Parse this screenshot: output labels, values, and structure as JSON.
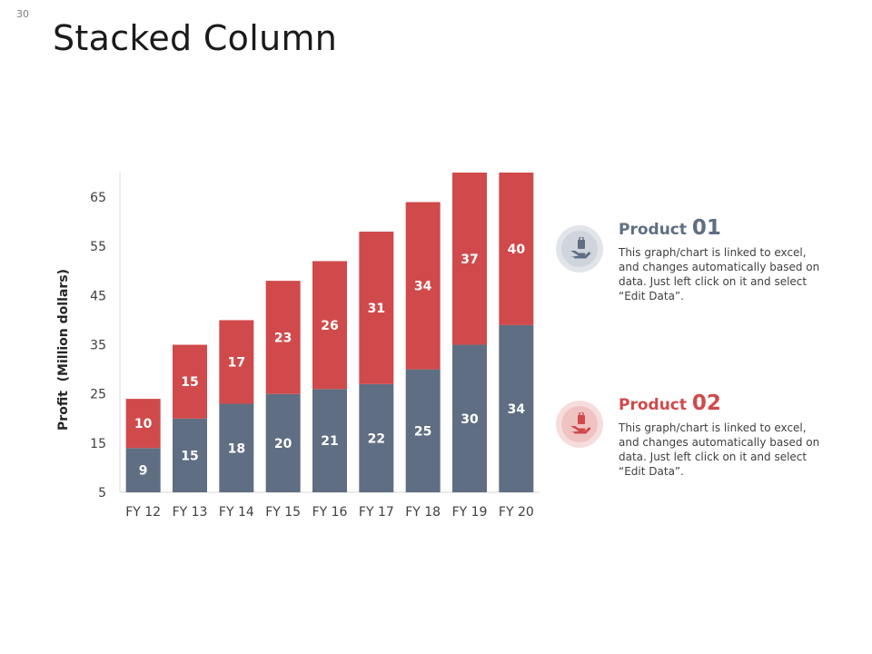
{
  "slide_number": "30",
  "title": "Stacked Column",
  "colors": {
    "series1": "#5f6e82",
    "series2": "#d04a4b"
  },
  "chart_data": {
    "type": "bar",
    "stacked": true,
    "categories": [
      "FY 12",
      "FY 13",
      "FY 14",
      "FY 15",
      "FY 16",
      "FY 17",
      "FY 18",
      "FY 19",
      "FY 20"
    ],
    "series": [
      {
        "name": "Product 01",
        "values": [
          9,
          15,
          18,
          20,
          21,
          22,
          25,
          30,
          34
        ]
      },
      {
        "name": "Product 02",
        "values": [
          10,
          15,
          17,
          23,
          26,
          31,
          34,
          37,
          40
        ]
      }
    ],
    "ylabel": "Profit  (Million dollars)",
    "xlabel": "",
    "ylim": [
      5,
      70
    ],
    "yticks": [
      5,
      15,
      25,
      35,
      45,
      55,
      65
    ],
    "grid": false,
    "legend": "none"
  },
  "products": [
    {
      "label": "Product ",
      "number": "01",
      "icon": "hand-holding-bag-icon",
      "text": "This graph/chart is linked to excel, and changes automatically based on data. Just left click on it and select “Edit Data”."
    },
    {
      "label": "Product ",
      "number": "02",
      "icon": "hand-holding-bag-icon",
      "text": "This graph/chart is linked to excel, and changes automatically based on data. Just left click on it and select “Edit Data”."
    }
  ]
}
